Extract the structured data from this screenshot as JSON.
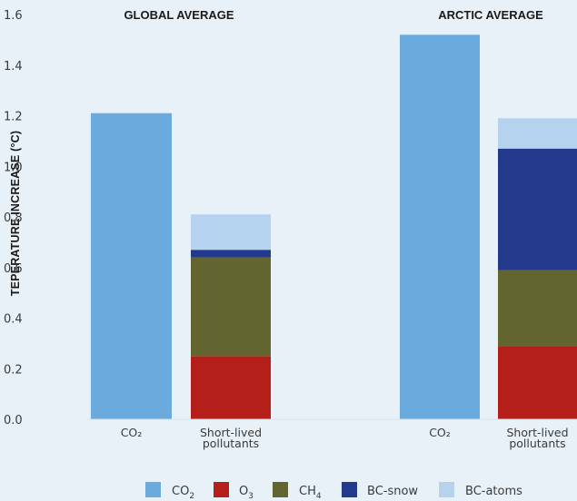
{
  "chart_data": {
    "type": "bar",
    "ylabel": "TEPERATURE INCREASE (°C)",
    "ylim": [
      0,
      1.6
    ],
    "yticks": [
      "0.0",
      "0.2",
      "0.4",
      "0.6",
      "0.8",
      "1.0",
      "1.2",
      "1.4",
      "1.6"
    ],
    "grid": false,
    "legend_placement": "bottom",
    "colors": {
      "CO2": "#6aaadd",
      "O3": "#b41f1a",
      "CH4": "#636530",
      "BC-snow": "#233a8c",
      "BC-atoms": "#b5d2ee"
    },
    "legend": [
      {
        "key": "CO2",
        "base": "CO",
        "sub": "2"
      },
      {
        "key": "O3",
        "base": "O",
        "sub": "3"
      },
      {
        "key": "CH4",
        "base": "CH",
        "sub": "4"
      },
      {
        "key": "BC-snow",
        "base": "BC-snow",
        "sub": ""
      },
      {
        "key": "BC-atoms",
        "base": "BC-atoms",
        "sub": ""
      }
    ],
    "panels": [
      {
        "title": "GLOBAL AVERAGE",
        "categories": [
          {
            "label": [
              "CO₂"
            ],
            "segments": [
              {
                "key": "CO2",
                "value": 1.21
              }
            ]
          },
          {
            "label": [
              "Short-lived",
              "pollutants"
            ],
            "segments": [
              {
                "key": "O3",
                "value": 0.25
              },
              {
                "key": "CH4",
                "value": 0.39
              },
              {
                "key": "BC-snow",
                "value": 0.03
              },
              {
                "key": "BC-atoms",
                "value": 0.14
              }
            ]
          }
        ]
      },
      {
        "title": "ARCTIC AVERAGE",
        "categories": [
          {
            "label": [
              "CO₂"
            ],
            "segments": [
              {
                "key": "CO2",
                "value": 1.52
              }
            ]
          },
          {
            "label": [
              "Short-lived",
              "pollutants"
            ],
            "segments": [
              {
                "key": "O3",
                "value": 0.29
              },
              {
                "key": "CH4",
                "value": 0.3
              },
              {
                "key": "BC-snow",
                "value": 0.48
              },
              {
                "key": "BC-atoms",
                "value": 0.12
              }
            ]
          }
        ]
      }
    ]
  }
}
